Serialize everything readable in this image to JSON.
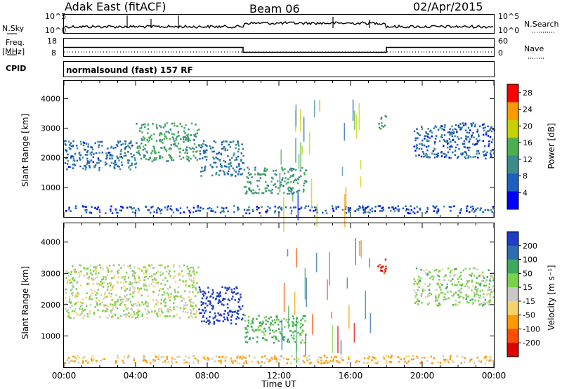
{
  "header": {
    "station": "Adak East (fitACF)",
    "beam": "Beam 06",
    "date": "02/Apr/2015"
  },
  "strip": {
    "nsky_label": "N.Sky",
    "nsky_ticks": [
      "10^5",
      "10^0"
    ],
    "nsearch_label": "N.Search",
    "freq_label_1": "Freq.",
    "freq_label_2": "[MHz]",
    "freq_ticks": [
      "18",
      "8"
    ],
    "nave_label": "Nave",
    "nave_ticks": [
      "60",
      "0"
    ],
    "cpid_label": "CPID",
    "cpid_value": "normalsound (fast) 157 RF",
    "freq_series": {
      "name": "Freq.",
      "points": [
        [
          0,
          12.8
        ],
        [
          10,
          12.8
        ],
        [
          10,
          10.1
        ],
        [
          18,
          10.1
        ],
        [
          18,
          12.8
        ],
        [
          24,
          12.8
        ]
      ]
    }
  },
  "chart_data": [
    {
      "type": "heatmap",
      "title": "",
      "xlabel": "",
      "ylabel": "Slant Range [km]",
      "xlim": [
        0,
        24
      ],
      "ylim": [
        0,
        4600
      ],
      "yticks": [
        1000,
        2000,
        3000,
        4000
      ],
      "colorbar": {
        "label": "Power [dB]",
        "ticks": [
          4,
          8,
          12,
          16,
          20,
          24,
          28
        ],
        "range": [
          0,
          30
        ],
        "colors": [
          "#0000ff",
          "#1d5fbf",
          "#3c8c8c",
          "#4caf50",
          "#c8d000",
          "#ff9900",
          "#ff0000"
        ]
      },
      "echo_regions": [
        {
          "t": [
            0.0,
            4.0
          ],
          "range": [
            1600,
            2600
          ],
          "level": 8
        },
        {
          "t": [
            4.0,
            7.5
          ],
          "range": [
            1900,
            3200
          ],
          "level": 13
        },
        {
          "t": [
            7.5,
            10.0
          ],
          "range": [
            1400,
            2600
          ],
          "level": 9
        },
        {
          "t": [
            10.0,
            13.5
          ],
          "range": [
            800,
            1700
          ],
          "level": 12
        },
        {
          "t": [
            17.5,
            18.0
          ],
          "range": [
            3000,
            3500
          ],
          "level": 14
        },
        {
          "t": [
            19.5,
            24.0
          ],
          "range": [
            2000,
            3200
          ],
          "level": 7
        },
        {
          "t": [
            0.0,
            24.0
          ],
          "range": [
            150,
            400
          ],
          "level": 6
        }
      ]
    },
    {
      "type": "heatmap",
      "title": "",
      "xlabel": "Time UT",
      "ylabel": "Slant Range [km]",
      "xlim": [
        0,
        24
      ],
      "ylim": [
        0,
        4600
      ],
      "xticks": [
        "00:00",
        "04:00",
        "08:00",
        "12:00",
        "16:00",
        "20:00",
        "00:00"
      ],
      "yticks": [
        1000,
        2000,
        3000,
        4000
      ],
      "colorbar": {
        "label": "Velocity [m s⁻¹]",
        "ticks": [
          200,
          100,
          50,
          15,
          -15,
          -50,
          -100,
          -200
        ],
        "colors": [
          "#1e3cc8",
          "#2e6bb0",
          "#3caa5c",
          "#7ad24a",
          "#c8c8c8",
          "#f5d36b",
          "#ff9900",
          "#ff4d00",
          "#e00000"
        ]
      },
      "echo_regions": [
        {
          "t": [
            0.0,
            7.5
          ],
          "range": [
            1600,
            3300
          ],
          "velocity": 0
        },
        {
          "t": [
            7.5,
            10.0
          ],
          "range": [
            1400,
            2600
          ],
          "velocity": 220
        },
        {
          "t": [
            10.0,
            13.5
          ],
          "range": [
            800,
            1700
          ],
          "velocity": 40
        },
        {
          "t": [
            17.5,
            18.0
          ],
          "range": [
            3000,
            3500
          ],
          "velocity": -150
        },
        {
          "t": [
            19.5,
            24.0
          ],
          "range": [
            2000,
            3200
          ],
          "velocity": 10
        },
        {
          "t": [
            0.0,
            24.0
          ],
          "range": [
            150,
            400
          ],
          "velocity": -30
        }
      ]
    }
  ]
}
